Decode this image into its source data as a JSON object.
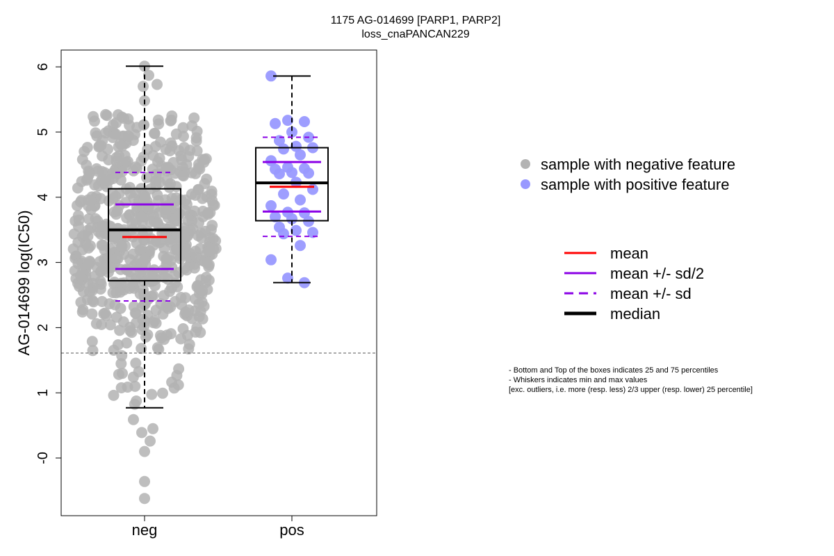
{
  "chart_data": {
    "type": "box",
    "title": "1175 AG-014699 [PARP1, PARP2]",
    "subtitle": "loss_cnaPANCAN229",
    "xlabel": "",
    "ylabel": "AG-014699 log(IC50)",
    "categories": [
      "neg",
      "pos"
    ],
    "yticks": [
      "-0",
      "1",
      "2",
      "3",
      "4",
      "5",
      "6"
    ],
    "ylim": [
      -0.88,
      6.25
    ],
    "threshold": 1.61,
    "grid": false,
    "groups": [
      {
        "name": "neg",
        "color": "#b3b3b3",
        "min": 0.77,
        "q1": 2.72,
        "median": 3.5,
        "q3": 4.13,
        "max": 6.01,
        "mean": 3.39,
        "sd_half_low": 2.9,
        "sd_half_high": 3.89,
        "sd_low": 2.41,
        "sd_high": 4.38,
        "n_points": 640,
        "outliers": [
          0.59,
          0.45,
          0.39,
          0.26,
          0.1,
          -0.36,
          -0.62
        ]
      },
      {
        "name": "pos",
        "color": "#9999ff",
        "min": 2.69,
        "q1": 3.64,
        "median": 4.22,
        "q3": 4.76,
        "max": 5.86,
        "mean": 4.16,
        "sd_half_low": 3.78,
        "sd_half_high": 4.54,
        "sd_low": 3.4,
        "sd_high": 4.92,
        "points": [
          5.86,
          5.18,
          5.16,
          5.13,
          5.0,
          4.92,
          4.87,
          4.78,
          4.76,
          4.74,
          4.65,
          4.56,
          4.46,
          4.44,
          4.43,
          4.38,
          4.37,
          4.36,
          4.23,
          4.12,
          4.05,
          3.96,
          3.87,
          3.77,
          3.76,
          3.7,
          3.67,
          3.63,
          3.54,
          3.49,
          3.46,
          3.44,
          3.26,
          3.04,
          2.76,
          2.69
        ]
      }
    ],
    "legend_points": [
      {
        "label": "sample with negative feature",
        "color": "#b3b3b3"
      },
      {
        "label": "sample with positive feature",
        "color": "#9999ff"
      }
    ],
    "legend_lines": [
      {
        "label": "mean",
        "color": "#ff0000",
        "style": "solid"
      },
      {
        "label": "mean +/- sd/2",
        "color": "#8a00e6",
        "style": "solid"
      },
      {
        "label": "mean +/- sd",
        "color": "#8a00e6",
        "style": "dashed"
      },
      {
        "label": "median",
        "color": "#000000",
        "style": "solid-bold"
      }
    ],
    "notes": [
      "- Bottom and Top of the boxes indicates 25 and 75 percentiles",
      "- Whiskers indicates min and max values",
      "[exc. outliers, i.e. more (resp. less) 2/3 upper (resp. lower) 25 percentile]"
    ]
  }
}
